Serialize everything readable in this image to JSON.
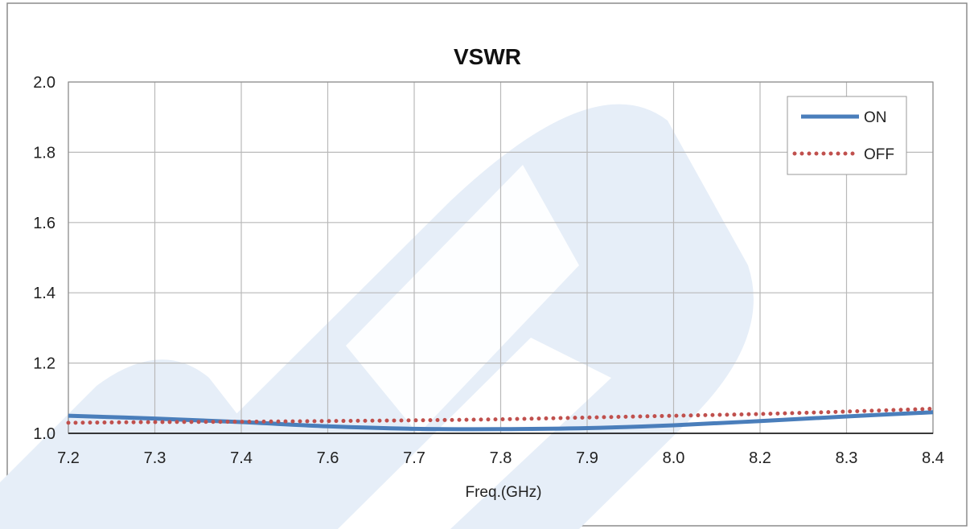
{
  "chart_data": {
    "type": "line",
    "title": "VSWR",
    "xlabel": "Freq.(GHz)",
    "ylabel": "",
    "categories": [
      "7.2",
      "7.3",
      "7.4",
      "7.6",
      "7.7",
      "7.8",
      "7.9",
      "8.0",
      "8.2",
      "8.3",
      "8.4"
    ],
    "y_ticks": [
      "1.0",
      "1.2",
      "1.4",
      "1.6",
      "1.8",
      "2.0"
    ],
    "ylim": [
      1.0,
      2.0
    ],
    "grid": true,
    "legend_position": "top-right",
    "series": [
      {
        "name": "ON",
        "style": "solid",
        "color": "#4a7ebb",
        "values": [
          1.05,
          1.042,
          1.032,
          1.02,
          1.013,
          1.012,
          1.015,
          1.023,
          1.035,
          1.048,
          1.06
        ]
      },
      {
        "name": "OFF",
        "style": "dotted",
        "color": "#c0504d",
        "values": [
          1.03,
          1.032,
          1.033,
          1.035,
          1.037,
          1.04,
          1.045,
          1.05,
          1.055,
          1.062,
          1.07
        ]
      }
    ],
    "colors": {
      "grid": "#b9b9b9",
      "border": "#8c8c8c",
      "watermark": "#dfeaf7"
    }
  }
}
